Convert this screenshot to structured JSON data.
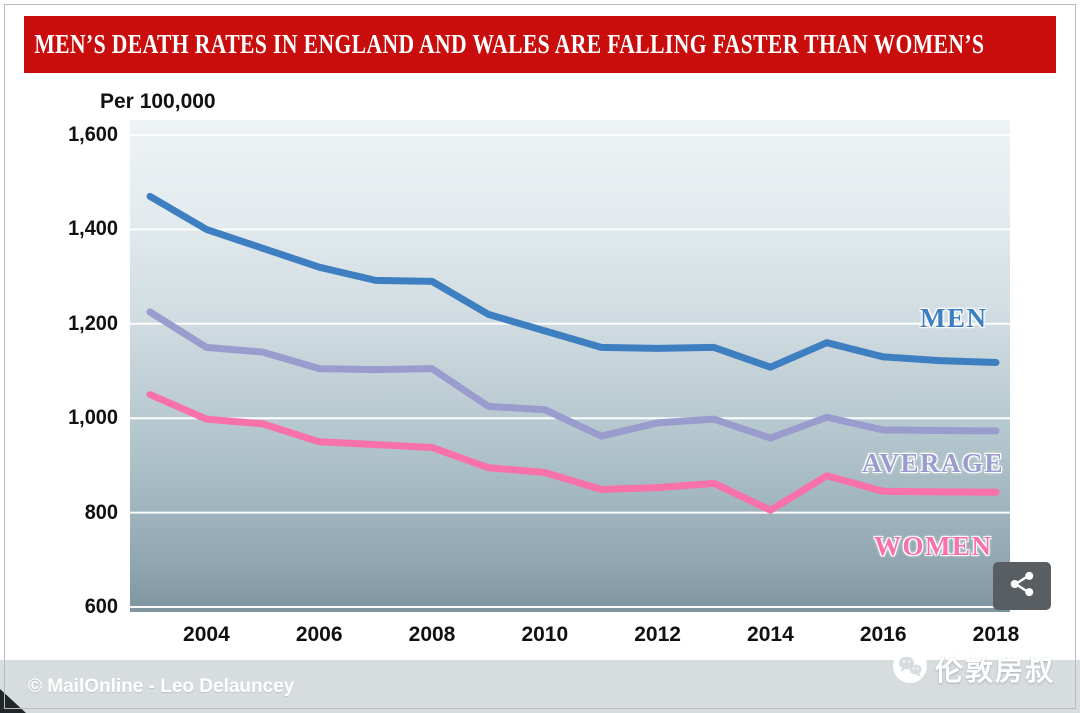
{
  "header": {
    "title": "MEN’S DEATH RATES IN ENGLAND AND WALES ARE FALLING FASTER THAN WOMEN’S",
    "background_color": "#c90d0d"
  },
  "chart_data": {
    "type": "line",
    "title": "MEN’S DEATH RATES IN ENGLAND AND WALES ARE FALLING FASTER THAN WOMEN’S",
    "ylabel": "Per 100,000",
    "xlabel": "",
    "ylim": [
      600,
      1600
    ],
    "grid": true,
    "legend_position": "inline-right",
    "x": [
      2003,
      2004,
      2005,
      2006,
      2007,
      2008,
      2009,
      2010,
      2011,
      2012,
      2013,
      2014,
      2015,
      2016,
      2017,
      2018
    ],
    "xticks": [
      2004,
      2006,
      2008,
      2010,
      2012,
      2014,
      2016,
      2018
    ],
    "yticks": [
      {
        "value": 600,
        "label": "600"
      },
      {
        "value": 800,
        "label": "800"
      },
      {
        "value": 1000,
        "label": "1,000"
      },
      {
        "value": 1200,
        "label": "1,200"
      },
      {
        "value": 1400,
        "label": "1,400"
      },
      {
        "value": 1600,
        "label": "1,600"
      }
    ],
    "series": [
      {
        "name": "MEN",
        "color": "#3e7fc1",
        "values": [
          1470,
          1400,
          1360,
          1320,
          1292,
          1290,
          1220,
          1185,
          1150,
          1148,
          1150,
          1108,
          1160,
          1130,
          1122,
          1118
        ]
      },
      {
        "name": "AVERAGE",
        "color": "#9a9cce",
        "values": [
          1225,
          1150,
          1140,
          1105,
          1103,
          1105,
          1025,
          1018,
          962,
          990,
          998,
          958,
          1002,
          975,
          974,
          973
        ]
      },
      {
        "name": "WOMEN",
        "color": "#f871a9",
        "values": [
          1050,
          998,
          988,
          950,
          944,
          938,
          895,
          885,
          849,
          853,
          862,
          805,
          878,
          845,
          844,
          843
        ]
      }
    ]
  },
  "credit": "© MailOnline - Leo Delauncey",
  "watermark": {
    "text": "伦敦房叔",
    "icon": "wechat-icon"
  },
  "share": {
    "icon": "share-icon"
  }
}
